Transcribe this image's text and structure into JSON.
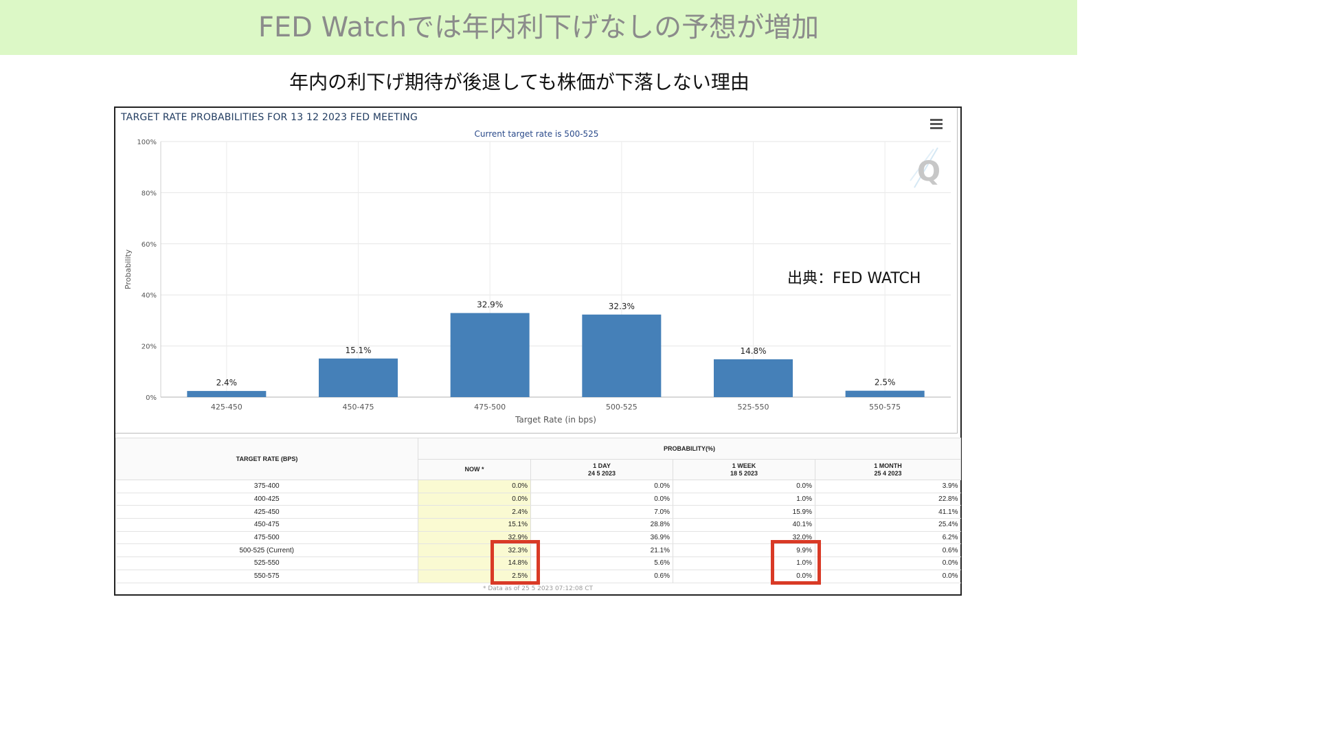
{
  "banner": {
    "title": "FED Watchでは年内利下げなしの予想が増加"
  },
  "subtitle": "年内の利下げ期待が後退しても株価が下落しない理由",
  "source_note": "出典：FED WATCH",
  "chart_data": {
    "type": "bar",
    "title": "TARGET RATE PROBABILITIES FOR 13 12 2023 FED MEETING",
    "subtitle": "Current target rate is 500-525",
    "xlabel": "Target Rate (in bps)",
    "ylabel": "Probability",
    "categories": [
      "425-450",
      "450-475",
      "475-500",
      "500-525",
      "525-550",
      "550-575"
    ],
    "values": [
      2.4,
      15.1,
      32.9,
      32.3,
      14.8,
      2.5
    ],
    "data_labels": [
      "2.4%",
      "15.1%",
      "32.9%",
      "32.3%",
      "14.8%",
      "2.5%"
    ],
    "ylim": [
      0,
      100
    ],
    "yticks": [
      "0%",
      "20%",
      "40%",
      "60%",
      "80%",
      "100%"
    ],
    "grid": true,
    "colors": {
      "bar": "#4580b8"
    }
  },
  "table": {
    "header_rate": "TARGET RATE (BPS)",
    "header_prob": "PROBABILITY(%)",
    "columns": [
      {
        "label": "NOW *",
        "date": ""
      },
      {
        "label": "1 DAY",
        "date": "24 5 2023"
      },
      {
        "label": "1 WEEK",
        "date": "18 5 2023"
      },
      {
        "label": "1 MONTH",
        "date": "25 4 2023"
      }
    ],
    "rows": [
      {
        "rate": "375-400",
        "values": [
          "0.0%",
          "0.0%",
          "0.0%",
          "3.9%"
        ]
      },
      {
        "rate": "400-425",
        "values": [
          "0.0%",
          "0.0%",
          "1.0%",
          "22.8%"
        ]
      },
      {
        "rate": "425-450",
        "values": [
          "2.4%",
          "7.0%",
          "15.9%",
          "41.1%"
        ]
      },
      {
        "rate": "450-475",
        "values": [
          "15.1%",
          "28.8%",
          "40.1%",
          "25.4%"
        ]
      },
      {
        "rate": "475-500",
        "values": [
          "32.9%",
          "36.9%",
          "32.0%",
          "6.2%"
        ]
      },
      {
        "rate": "500-525 (Current)",
        "values": [
          "32.3%",
          "21.1%",
          "9.9%",
          "0.6%"
        ]
      },
      {
        "rate": "525-550",
        "values": [
          "14.8%",
          "5.6%",
          "1.0%",
          "0.0%"
        ]
      },
      {
        "rate": "550-575",
        "values": [
          "2.5%",
          "0.6%",
          "0.0%",
          "0.0%"
        ]
      }
    ],
    "footnote": "* Data as of 25 5 2023 07:12:08 CT"
  }
}
